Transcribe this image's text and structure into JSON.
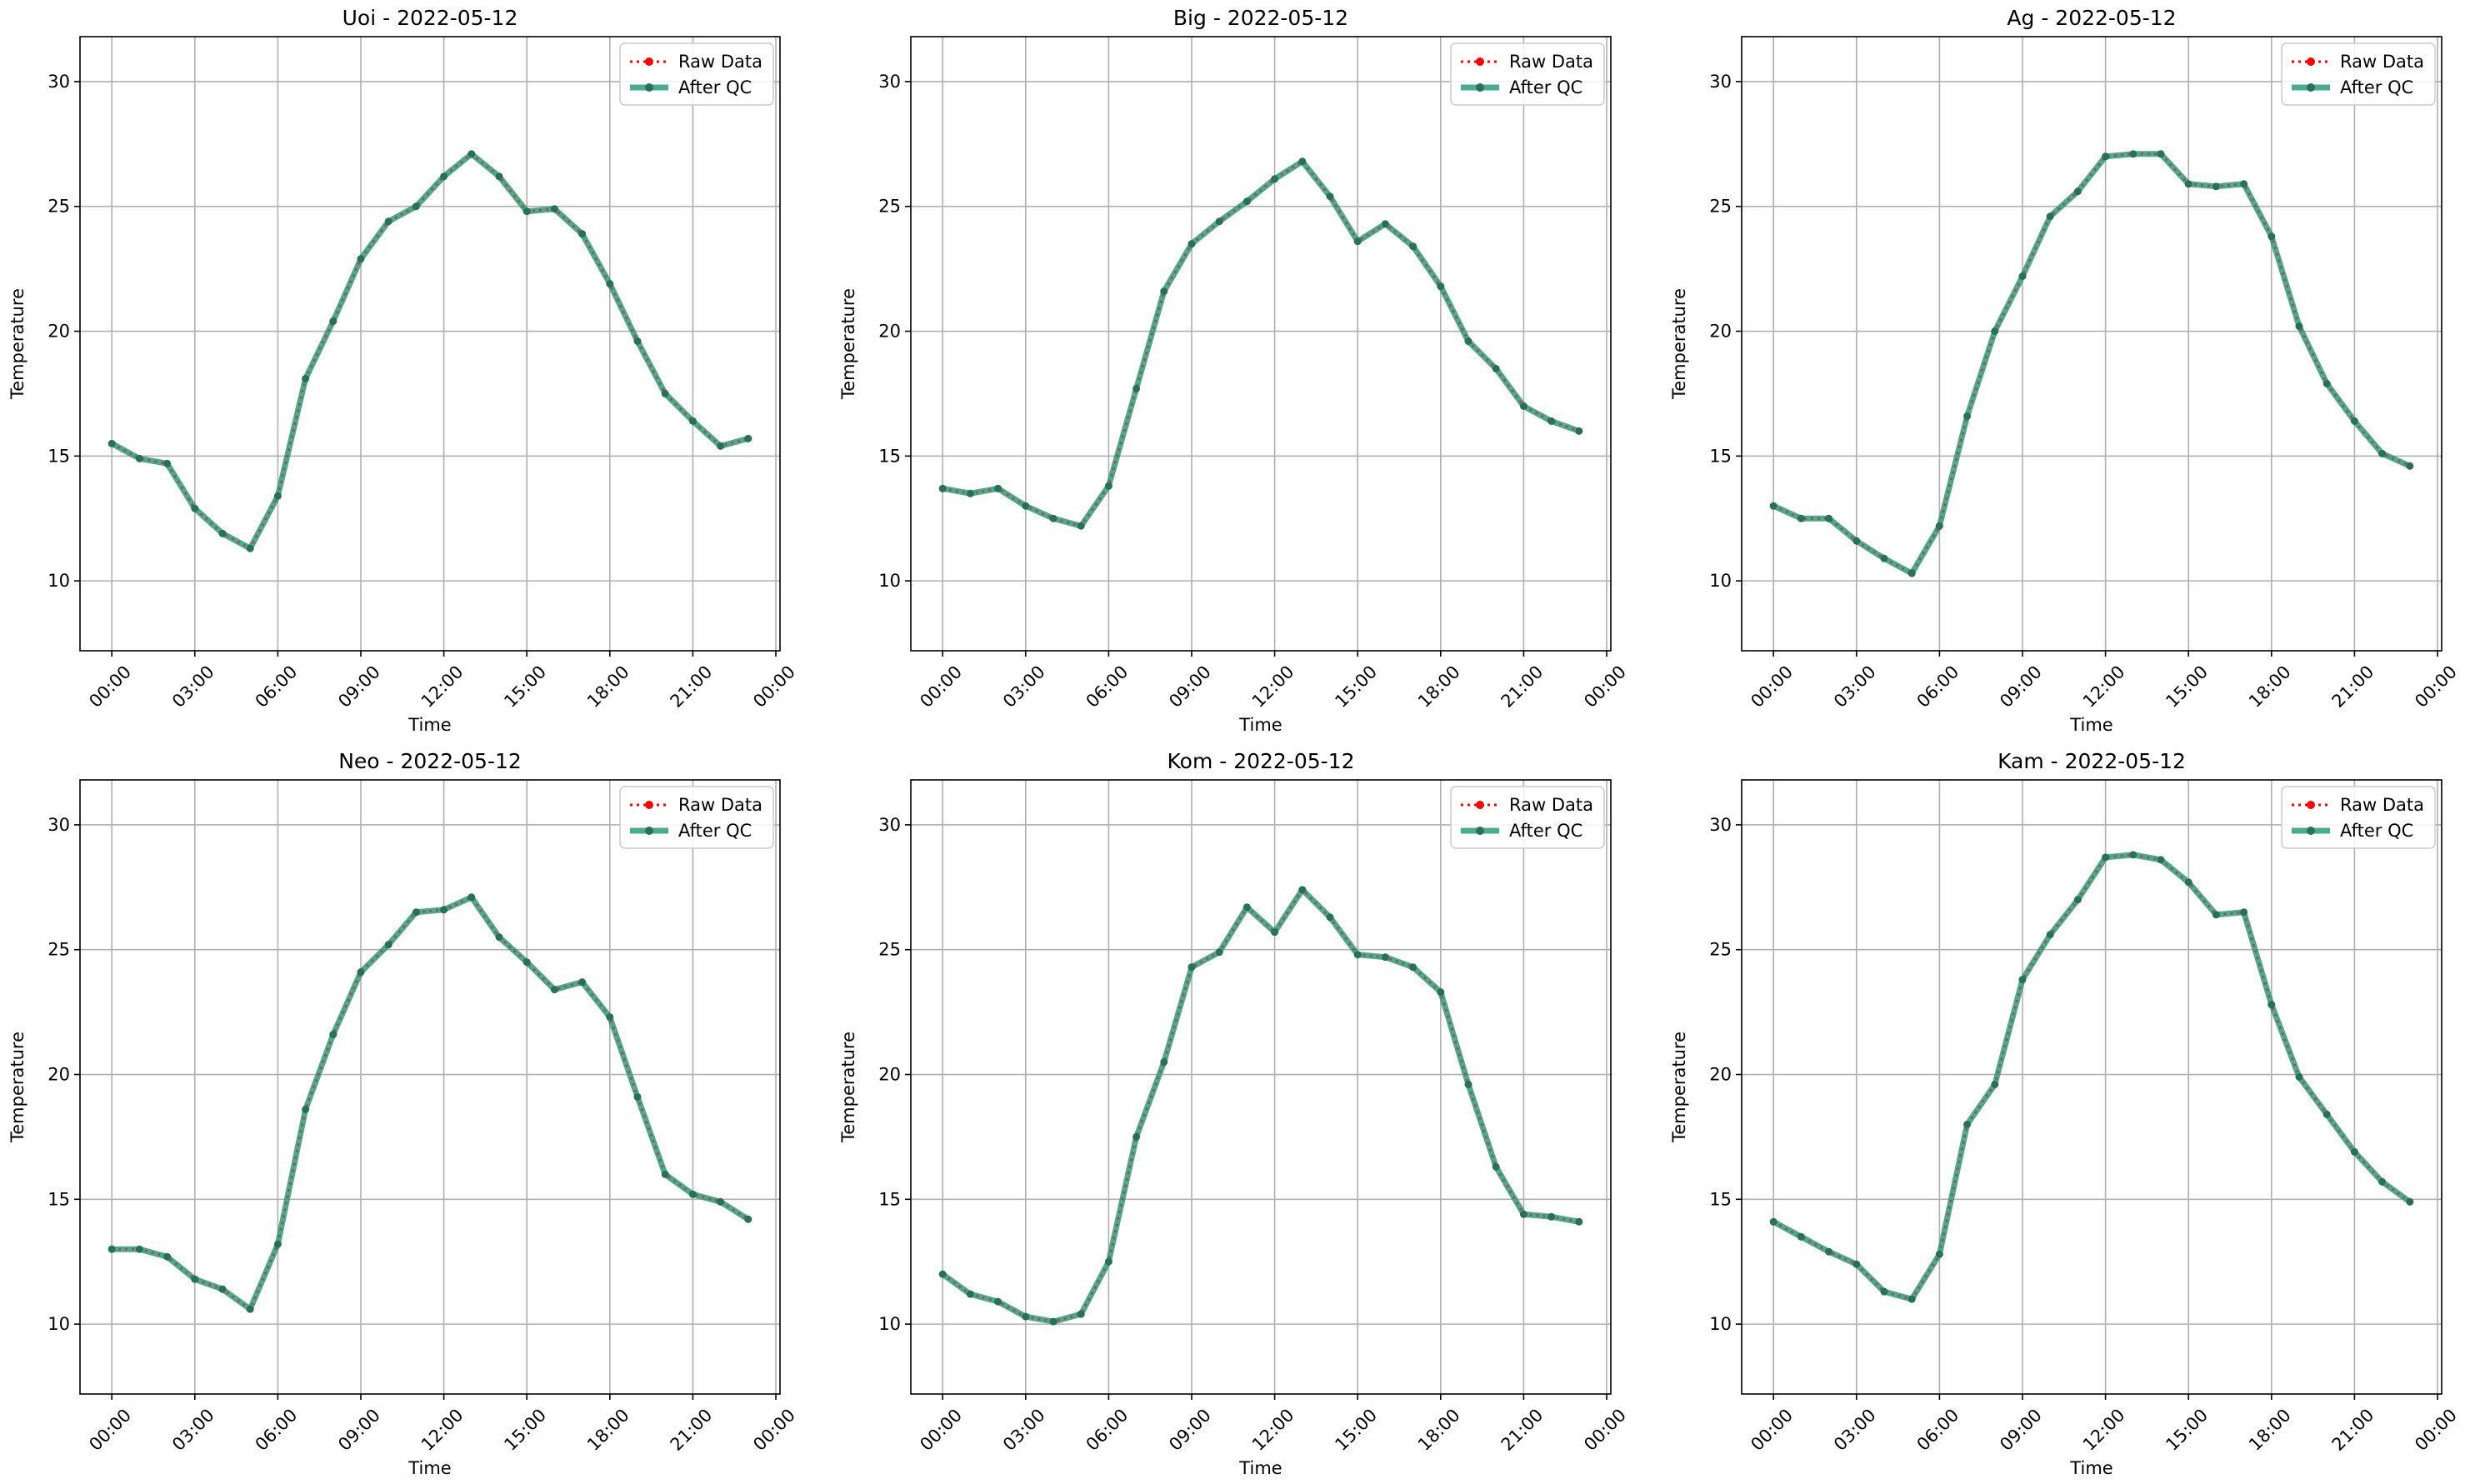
{
  "figure": {
    "colors": {
      "raw": "#ff0000",
      "qc": "#2a9d7a",
      "grid": "#b0b0b0",
      "axes": "#000000"
    },
    "legend": {
      "raw_label": "Raw Data",
      "qc_label": "After QC",
      "location": "top-right"
    }
  },
  "chart_data": [
    {
      "type": "line",
      "title": "Uoi - 2022-05-12",
      "xlabel": "Time",
      "ylabel": "Temperature",
      "x_tick_labels": [
        "00:00",
        "03:00",
        "06:00",
        "09:00",
        "12:00",
        "15:00",
        "18:00",
        "21:00",
        "00:00"
      ],
      "y_ticks": [
        10,
        15,
        20,
        25,
        30
      ],
      "ylim": [
        7.2,
        31.8
      ],
      "grid": true,
      "x_hours": [
        0,
        1,
        2,
        3,
        4,
        5,
        6,
        7,
        8,
        9,
        10,
        11,
        12,
        13,
        14,
        15,
        16,
        17,
        18,
        19,
        20,
        21,
        22,
        23
      ],
      "series": [
        {
          "name": "Raw Data",
          "values": [
            15.5,
            14.9,
            14.7,
            12.9,
            11.9,
            11.3,
            13.4,
            18.1,
            20.4,
            22.9,
            24.4,
            25.0,
            26.2,
            27.1,
            26.2,
            24.8,
            24.9,
            23.9,
            21.9,
            19.6,
            17.5,
            16.4,
            15.4,
            15.7
          ]
        },
        {
          "name": "After QC",
          "values": [
            15.5,
            14.9,
            14.7,
            12.9,
            11.9,
            11.3,
            13.4,
            18.1,
            20.4,
            22.9,
            24.4,
            25.0,
            26.2,
            27.1,
            26.2,
            24.8,
            24.9,
            23.9,
            21.9,
            19.6,
            17.5,
            16.4,
            15.4,
            15.7
          ]
        }
      ]
    },
    {
      "type": "line",
      "title": "Big - 2022-05-12",
      "xlabel": "Time",
      "ylabel": "Temperature",
      "x_tick_labels": [
        "00:00",
        "03:00",
        "06:00",
        "09:00",
        "12:00",
        "15:00",
        "18:00",
        "21:00",
        "00:00"
      ],
      "y_ticks": [
        10,
        15,
        20,
        25,
        30
      ],
      "ylim": [
        7.2,
        31.8
      ],
      "grid": true,
      "x_hours": [
        0,
        1,
        2,
        3,
        4,
        5,
        6,
        7,
        8,
        9,
        10,
        11,
        12,
        13,
        14,
        15,
        16,
        17,
        18,
        19,
        20,
        21,
        22,
        23
      ],
      "series": [
        {
          "name": "Raw Data",
          "values": [
            13.7,
            13.5,
            13.7,
            13.0,
            12.5,
            12.2,
            13.8,
            17.7,
            21.6,
            23.5,
            24.4,
            25.2,
            26.1,
            26.8,
            25.4,
            23.6,
            24.3,
            23.4,
            21.8,
            19.6,
            18.5,
            17.0,
            16.4,
            16.0
          ]
        },
        {
          "name": "After QC",
          "values": [
            13.7,
            13.5,
            13.7,
            13.0,
            12.5,
            12.2,
            13.8,
            17.7,
            21.6,
            23.5,
            24.4,
            25.2,
            26.1,
            26.8,
            25.4,
            23.6,
            24.3,
            23.4,
            21.8,
            19.6,
            18.5,
            17.0,
            16.4,
            16.0
          ]
        }
      ]
    },
    {
      "type": "line",
      "title": "Ag - 2022-05-12",
      "xlabel": "Time",
      "ylabel": "Temperature",
      "x_tick_labels": [
        "00:00",
        "03:00",
        "06:00",
        "09:00",
        "12:00",
        "15:00",
        "18:00",
        "21:00",
        "00:00"
      ],
      "y_ticks": [
        10,
        15,
        20,
        25,
        30
      ],
      "ylim": [
        7.2,
        31.8
      ],
      "grid": true,
      "x_hours": [
        0,
        1,
        2,
        3,
        4,
        5,
        6,
        7,
        8,
        9,
        10,
        11,
        12,
        13,
        14,
        15,
        16,
        17,
        18,
        19,
        20,
        21,
        22,
        23
      ],
      "series": [
        {
          "name": "Raw Data",
          "values": [
            13.0,
            12.5,
            12.5,
            11.6,
            10.9,
            10.3,
            12.2,
            16.6,
            20.0,
            22.2,
            24.6,
            25.6,
            27.0,
            27.1,
            27.1,
            25.9,
            25.8,
            25.9,
            23.8,
            20.2,
            17.9,
            16.4,
            15.1,
            14.6
          ]
        },
        {
          "name": "After QC",
          "values": [
            13.0,
            12.5,
            12.5,
            11.6,
            10.9,
            10.3,
            12.2,
            16.6,
            20.0,
            22.2,
            24.6,
            25.6,
            27.0,
            27.1,
            27.1,
            25.9,
            25.8,
            25.9,
            23.8,
            20.2,
            17.9,
            16.4,
            15.1,
            14.6
          ]
        }
      ]
    },
    {
      "type": "line",
      "title": "Neo - 2022-05-12",
      "xlabel": "Time",
      "ylabel": "Temperature",
      "x_tick_labels": [
        "00:00",
        "03:00",
        "06:00",
        "09:00",
        "12:00",
        "15:00",
        "18:00",
        "21:00",
        "00:00"
      ],
      "y_ticks": [
        10,
        15,
        20,
        25,
        30
      ],
      "ylim": [
        7.2,
        31.8
      ],
      "grid": true,
      "x_hours": [
        0,
        1,
        2,
        3,
        4,
        5,
        6,
        7,
        8,
        9,
        10,
        11,
        12,
        13,
        14,
        15,
        16,
        17,
        18,
        19,
        20,
        21,
        22,
        23
      ],
      "series": [
        {
          "name": "Raw Data",
          "values": [
            13.0,
            13.0,
            12.7,
            11.8,
            11.4,
            10.6,
            13.2,
            18.6,
            21.6,
            24.1,
            25.2,
            26.5,
            26.6,
            27.1,
            25.5,
            24.5,
            23.4,
            23.7,
            22.3,
            19.1,
            16.0,
            15.2,
            14.9,
            14.2
          ]
        },
        {
          "name": "After QC",
          "values": [
            13.0,
            13.0,
            12.7,
            11.8,
            11.4,
            10.6,
            13.2,
            18.6,
            21.6,
            24.1,
            25.2,
            26.5,
            26.6,
            27.1,
            25.5,
            24.5,
            23.4,
            23.7,
            22.3,
            19.1,
            16.0,
            15.2,
            14.9,
            14.2
          ]
        }
      ]
    },
    {
      "type": "line",
      "title": "Kom - 2022-05-12",
      "xlabel": "Time",
      "ylabel": "Temperature",
      "x_tick_labels": [
        "00:00",
        "03:00",
        "06:00",
        "09:00",
        "12:00",
        "15:00",
        "18:00",
        "21:00",
        "00:00"
      ],
      "y_ticks": [
        10,
        15,
        20,
        25,
        30
      ],
      "ylim": [
        7.2,
        31.8
      ],
      "grid": true,
      "x_hours": [
        0,
        1,
        2,
        3,
        4,
        5,
        6,
        7,
        8,
        9,
        10,
        11,
        12,
        13,
        14,
        15,
        16,
        17,
        18,
        19,
        20,
        21,
        22,
        23
      ],
      "series": [
        {
          "name": "Raw Data",
          "values": [
            12.0,
            11.2,
            10.9,
            10.3,
            10.1,
            10.4,
            12.5,
            17.5,
            20.5,
            24.3,
            24.9,
            26.7,
            25.7,
            27.4,
            26.3,
            24.8,
            24.7,
            24.3,
            23.3,
            19.6,
            16.3,
            14.4,
            14.3,
            14.1
          ]
        },
        {
          "name": "After QC",
          "values": [
            12.0,
            11.2,
            10.9,
            10.3,
            10.1,
            10.4,
            12.5,
            17.5,
            20.5,
            24.3,
            24.9,
            26.7,
            25.7,
            27.4,
            26.3,
            24.8,
            24.7,
            24.3,
            23.3,
            19.6,
            16.3,
            14.4,
            14.3,
            14.1
          ]
        }
      ]
    },
    {
      "type": "line",
      "title": "Kam - 2022-05-12",
      "xlabel": "Time",
      "ylabel": "Temperature",
      "x_tick_labels": [
        "00:00",
        "03:00",
        "06:00",
        "09:00",
        "12:00",
        "15:00",
        "18:00",
        "21:00",
        "00:00"
      ],
      "y_ticks": [
        10,
        15,
        20,
        25,
        30
      ],
      "ylim": [
        7.2,
        31.8
      ],
      "grid": true,
      "x_hours": [
        0,
        1,
        2,
        3,
        4,
        5,
        6,
        7,
        8,
        9,
        10,
        11,
        12,
        13,
        14,
        15,
        16,
        17,
        18,
        19,
        20,
        21,
        22,
        23
      ],
      "series": [
        {
          "name": "Raw Data",
          "values": [
            14.1,
            13.5,
            12.9,
            12.4,
            11.3,
            11.0,
            12.8,
            18.0,
            19.6,
            23.8,
            25.6,
            27.0,
            28.7,
            28.8,
            28.6,
            27.7,
            26.4,
            26.5,
            22.8,
            19.9,
            18.4,
            16.9,
            15.7,
            14.9
          ]
        },
        {
          "name": "After QC",
          "values": [
            14.1,
            13.5,
            12.9,
            12.4,
            11.3,
            11.0,
            12.8,
            18.0,
            19.6,
            23.8,
            25.6,
            27.0,
            28.7,
            28.8,
            28.6,
            27.7,
            26.4,
            26.5,
            22.8,
            19.9,
            18.4,
            16.9,
            15.7,
            14.9
          ]
        }
      ]
    }
  ]
}
